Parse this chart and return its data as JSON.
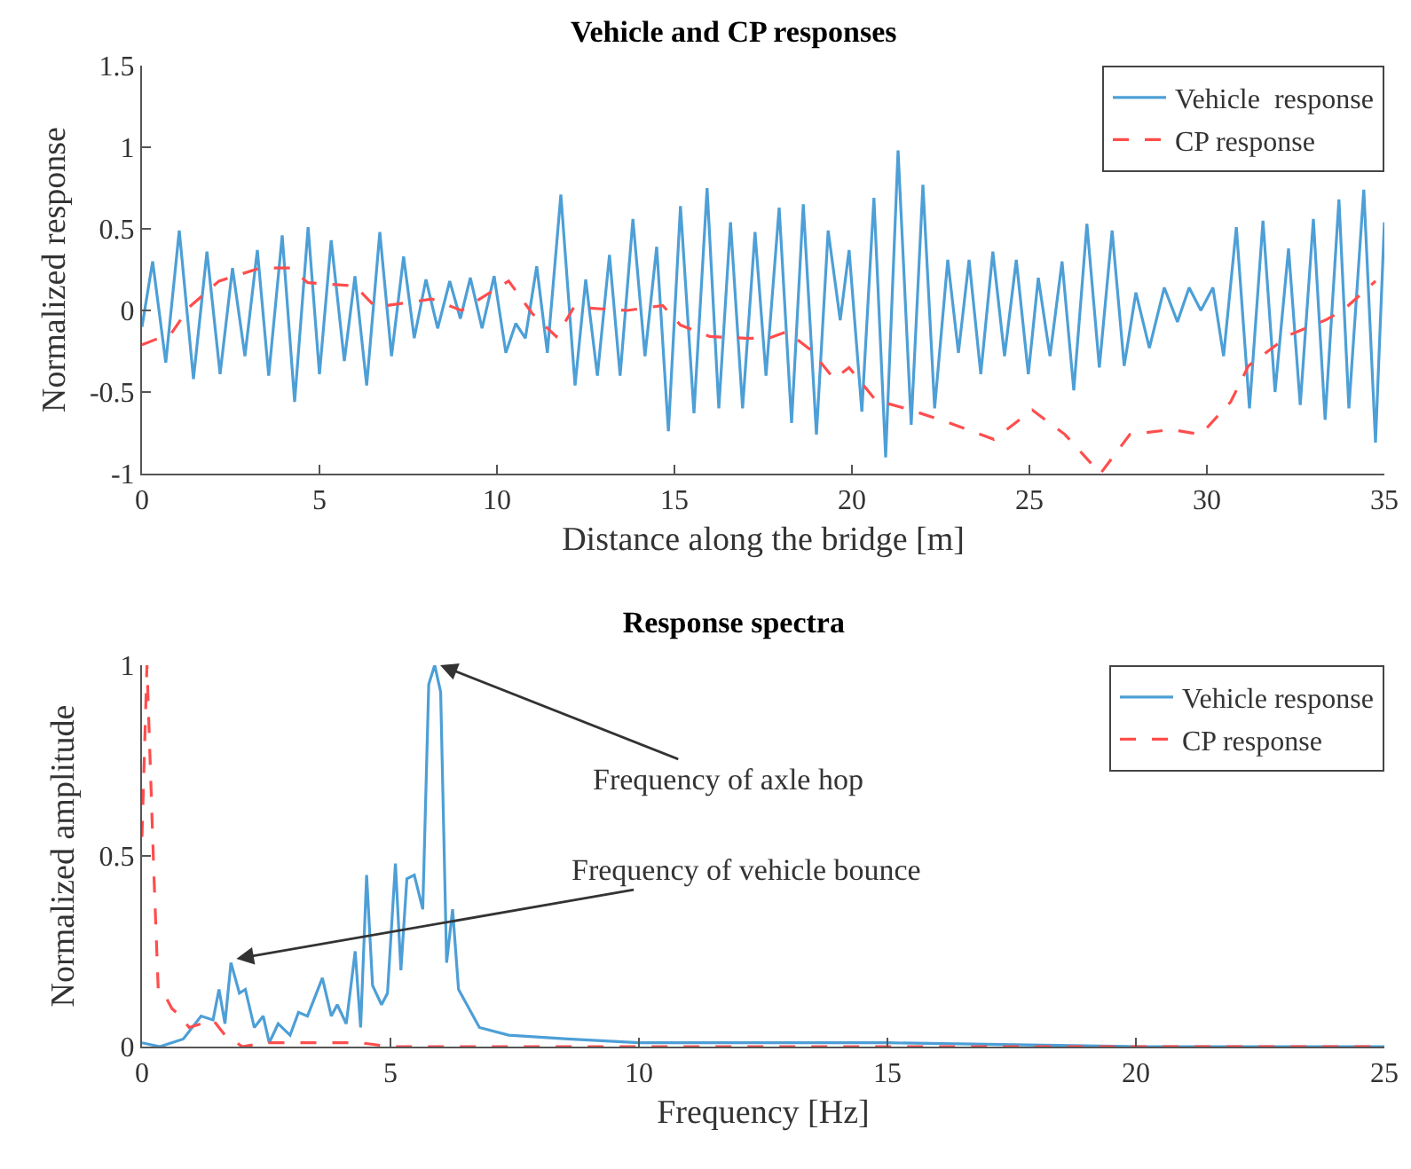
{
  "chart_data": [
    {
      "type": "line",
      "title": "Vehicle and CP responses",
      "xlabel": "Distance along the bridge [m]",
      "ylabel": "Normalized response",
      "xlim": [
        0,
        35
      ],
      "xticks": [
        0,
        5,
        10,
        15,
        20,
        25,
        30,
        35
      ],
      "ylim": [
        -1,
        1.5
      ],
      "yticks": [
        -1,
        -0.5,
        0,
        0.5,
        1,
        1.5
      ],
      "grid": false,
      "legend": "top right",
      "series": [
        {
          "name": "Vehicle  response",
          "color": "#4d9fd6",
          "line_style": "solid",
          "x": [
            0,
            0.3,
            0.67,
            1.05,
            1.45,
            1.83,
            2.2,
            2.55,
            2.9,
            3.25,
            3.57,
            3.95,
            4.3,
            4.68,
            5.0,
            5.33,
            5.7,
            6.0,
            6.33,
            6.7,
            7.03,
            7.37,
            7.67,
            8.0,
            8.33,
            8.67,
            8.97,
            9.25,
            9.58,
            9.92,
            10.25,
            10.53,
            10.8,
            11.12,
            11.42,
            11.8,
            12.2,
            12.5,
            12.83,
            13.17,
            13.47,
            13.83,
            14.17,
            14.5,
            14.83,
            15.17,
            15.55,
            15.92,
            16.25,
            16.58,
            16.92,
            17.27,
            17.58,
            17.95,
            18.3,
            18.63,
            19.0,
            19.33,
            19.67,
            19.92,
            20.28,
            20.62,
            20.95,
            21.3,
            21.67,
            22.0,
            22.33,
            22.7,
            23.0,
            23.3,
            23.63,
            23.97,
            24.3,
            24.63,
            24.97,
            25.25,
            25.58,
            25.92,
            26.25,
            26.62,
            26.97,
            27.33,
            27.67,
            28.0,
            28.38,
            28.8,
            29.17,
            29.5,
            29.83,
            30.17,
            30.47,
            30.83,
            31.2,
            31.58,
            31.92,
            32.3,
            32.63,
            33.0,
            33.33,
            33.72,
            34.0,
            34.42,
            34.75,
            35
          ],
          "values": [
            -0.1,
            0.3,
            -0.32,
            0.49,
            -0.42,
            0.36,
            -0.39,
            0.26,
            -0.28,
            0.37,
            -0.4,
            0.46,
            -0.56,
            0.51,
            -0.39,
            0.43,
            -0.31,
            0.21,
            -0.46,
            0.48,
            -0.28,
            0.33,
            -0.17,
            0.19,
            -0.11,
            0.18,
            -0.05,
            0.2,
            -0.11,
            0.21,
            -0.26,
            -0.08,
            -0.17,
            0.27,
            -0.26,
            0.71,
            -0.46,
            0.19,
            -0.4,
            0.34,
            -0.4,
            0.56,
            -0.28,
            0.39,
            -0.74,
            0.64,
            -0.63,
            0.75,
            -0.6,
            0.54,
            -0.6,
            0.48,
            -0.4,
            0.63,
            -0.69,
            0.65,
            -0.76,
            0.49,
            -0.06,
            0.37,
            -0.62,
            0.69,
            -0.9,
            0.98,
            -0.7,
            0.77,
            -0.6,
            0.31,
            -0.26,
            0.31,
            -0.39,
            0.36,
            -0.28,
            0.31,
            -0.39,
            0.2,
            -0.28,
            0.3,
            -0.49,
            0.53,
            -0.35,
            0.49,
            -0.34,
            0.11,
            -0.23,
            0.14,
            -0.07,
            0.14,
            0.0,
            0.14,
            -0.28,
            0.51,
            -0.6,
            0.55,
            -0.5,
            0.38,
            -0.58,
            0.56,
            -0.67,
            0.68,
            -0.6,
            0.74,
            -0.81,
            0.54
          ]
        },
        {
          "name": "CP response",
          "color": "#ff4d4d",
          "line_style": "dashed",
          "x": [
            0,
            0.83,
            1.33,
            2.17,
            3.33,
            4.17,
            4.67,
            6.0,
            6.58,
            8.17,
            9.0,
            10.33,
            11.0,
            11.67,
            12.17,
            13.67,
            14.67,
            15.17,
            16.0,
            17.0,
            17.67,
            18.17,
            18.83,
            19.5,
            19.92,
            20.67,
            21.5,
            22.5,
            24.0,
            25.08,
            26.0,
            27.0,
            27.83,
            29.0,
            29.83,
            30.67,
            31.17,
            32.33,
            33.33,
            33.83,
            34.75
          ],
          "values": [
            -0.21,
            -0.14,
            0.02,
            0.18,
            0.26,
            0.26,
            0.17,
            0.15,
            0.02,
            0.07,
            0.0,
            0.18,
            -0.02,
            -0.16,
            0.02,
            0.0,
            0.03,
            -0.09,
            -0.16,
            -0.17,
            -0.17,
            -0.13,
            -0.24,
            -0.42,
            -0.35,
            -0.55,
            -0.6,
            -0.67,
            -0.79,
            -0.61,
            -0.76,
            -1.0,
            -0.76,
            -0.73,
            -0.76,
            -0.56,
            -0.34,
            -0.15,
            -0.06,
            0.0,
            0.18
          ]
        }
      ]
    },
    {
      "type": "line",
      "title": "Response spectra",
      "xlabel": "Frequency [Hz]",
      "ylabel": "Normalized amplitude",
      "xlim": [
        0,
        25
      ],
      "xticks": [
        0,
        5,
        10,
        15,
        20,
        25
      ],
      "ylim": [
        0,
        1
      ],
      "yticks": [
        0,
        0.5,
        1
      ],
      "grid": false,
      "legend": "top right",
      "annotations": [
        {
          "text": "Frequency of axle hop",
          "x": 6,
          "y": 1
        },
        {
          "text": "Frequency of vehicle bounce",
          "x": 1.9,
          "y": 0.23
        }
      ],
      "series": [
        {
          "name": "Vehicle response",
          "color": "#4d9fd6",
          "line_style": "solid",
          "x": [
            0,
            0.36,
            0.83,
            1.19,
            1.43,
            1.55,
            1.67,
            1.79,
            1.96,
            2.08,
            2.26,
            2.44,
            2.56,
            2.74,
            2.98,
            3.15,
            3.33,
            3.63,
            3.81,
            3.93,
            4.11,
            4.29,
            4.4,
            4.52,
            4.64,
            4.82,
            4.94,
            5.1,
            5.21,
            5.33,
            5.48,
            5.65,
            5.77,
            5.89,
            6.01,
            6.13,
            6.25,
            6.37,
            6.79,
            7.38,
            8.57,
            10,
            15,
            20,
            25
          ],
          "values": [
            0.01,
            0.0,
            0.02,
            0.08,
            0.07,
            0.15,
            0.06,
            0.22,
            0.14,
            0.15,
            0.05,
            0.08,
            0.01,
            0.06,
            0.03,
            0.09,
            0.08,
            0.18,
            0.08,
            0.11,
            0.06,
            0.25,
            0.05,
            0.45,
            0.16,
            0.11,
            0.14,
            0.48,
            0.2,
            0.44,
            0.45,
            0.36,
            0.95,
            1.0,
            0.93,
            0.22,
            0.36,
            0.15,
            0.05,
            0.03,
            0.02,
            0.01,
            0.01,
            0.0,
            0.0
          ]
        },
        {
          "name": "CP response",
          "color": "#ff4d4d",
          "line_style": "dashed",
          "x": [
            0,
            0.1,
            0.24,
            0.33,
            0.48,
            0.6,
            0.77,
            0.95,
            1.19,
            1.43,
            1.67,
            2.02,
            2.5,
            3.2,
            4.4,
            5.0,
            10,
            15,
            20,
            25
          ],
          "values": [
            0.55,
            1.0,
            0.45,
            0.14,
            0.13,
            0.1,
            0.08,
            0.05,
            0.06,
            0.07,
            0.03,
            0.0,
            0.01,
            0.01,
            0.01,
            0.0,
            0.0,
            0.0,
            0.0,
            0.0
          ]
        }
      ]
    }
  ]
}
